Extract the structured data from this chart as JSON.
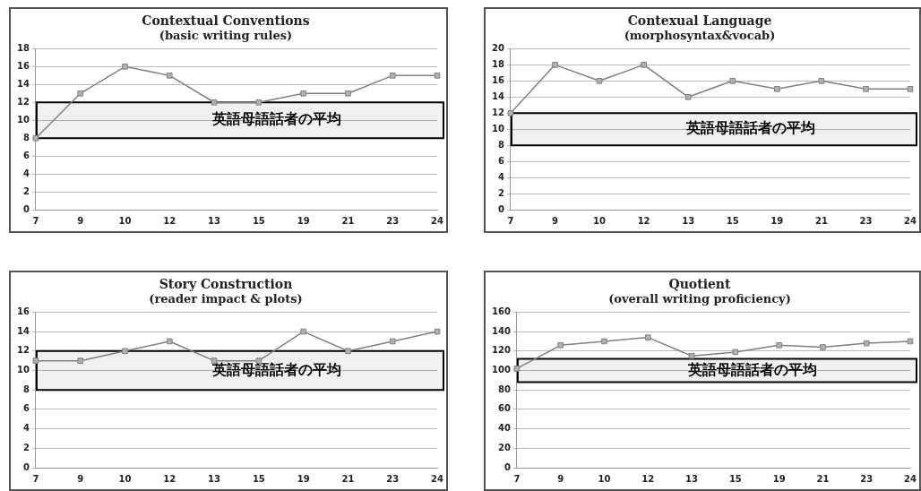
{
  "chart_data": [
    {
      "type": "line",
      "title": "Contextual Conventions",
      "subtitle": "(basic writing rules)",
      "categories": [
        "7",
        "9",
        "10",
        "12",
        "13",
        "15",
        "19",
        "21",
        "23",
        "24"
      ],
      "values": [
        8,
        13,
        16,
        15,
        12,
        12,
        13,
        13,
        15,
        15
      ],
      "color": "#808080",
      "ylim": [
        0,
        18
      ],
      "yticks": [
        0,
        2,
        4,
        6,
        8,
        10,
        12,
        14,
        16,
        18
      ],
      "grid": "y",
      "marker": "square",
      "legend": false,
      "bands": [
        {
          "axis": "y",
          "from": 8,
          "to": 12,
          "label": "英語母語話者の平均",
          "color": "#000000"
        }
      ]
    },
    {
      "type": "line",
      "title": "Contexual Language",
      "subtitle": "(morphosyntax&vocab)",
      "categories": [
        "7",
        "9",
        "10",
        "12",
        "13",
        "15",
        "19",
        "21",
        "23",
        "24"
      ],
      "values": [
        12,
        18,
        16,
        18,
        14,
        16,
        15,
        16,
        15,
        15
      ],
      "color": "#808080",
      "ylim": [
        0,
        20
      ],
      "yticks": [
        0,
        2,
        4,
        6,
        8,
        10,
        12,
        14,
        16,
        18,
        20
      ],
      "grid": "y",
      "marker": "square",
      "legend": false,
      "bands": [
        {
          "axis": "y",
          "from": 8,
          "to": 12,
          "label": "英語母語話者の平均",
          "color": "#000000"
        }
      ]
    },
    {
      "type": "line",
      "title": "Story Construction",
      "subtitle": "(reader impact & plots)",
      "categories": [
        "7",
        "9",
        "10",
        "12",
        "13",
        "15",
        "19",
        "21",
        "23",
        "24"
      ],
      "values": [
        11,
        11,
        12,
        13,
        11,
        11,
        14,
        12,
        13,
        14
      ],
      "color": "#808080",
      "ylim": [
        0,
        16
      ],
      "yticks": [
        0,
        2,
        4,
        6,
        8,
        10,
        12,
        14,
        16
      ],
      "grid": "y",
      "marker": "square",
      "legend": false,
      "bands": [
        {
          "axis": "y",
          "from": 8,
          "to": 12,
          "label": "英語母語話者の平均",
          "color": "#000000"
        }
      ]
    },
    {
      "type": "line",
      "title": "Quotient",
      "subtitle": "(overall writing proficiency)",
      "categories": [
        "7",
        "9",
        "10",
        "12",
        "13",
        "15",
        "19",
        "21",
        "23",
        "24"
      ],
      "values": [
        102,
        126,
        130,
        134,
        115,
        119,
        126,
        124,
        128,
        130
      ],
      "color": "#808080",
      "ylim": [
        0,
        160
      ],
      "yticks": [
        0,
        20,
        40,
        60,
        80,
        100,
        120,
        140,
        160
      ],
      "grid": "y",
      "marker": "square",
      "legend": false,
      "bands": [
        {
          "axis": "y",
          "from": 88,
          "to": 112,
          "label": "英語母語話者の平均",
          "color": "#000000"
        }
      ]
    }
  ]
}
